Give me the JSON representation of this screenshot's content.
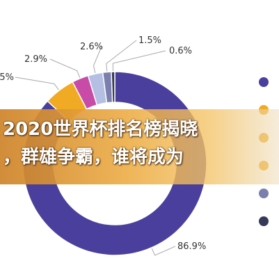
{
  "chart_data": {
    "type": "pie",
    "donut": true,
    "title": "",
    "series": [
      {
        "label": "86.9%",
        "value": 86.9,
        "color": "#4a3f9c"
      },
      {
        "label": "",
        "value": 5.5,
        "color": "#f0aa23"
      },
      {
        "label": "2.9%",
        "value": 2.9,
        "color": "#c84ba8"
      },
      {
        "label": "2.6%",
        "value": 2.6,
        "color": "#b4bfe3"
      },
      {
        "label": "1.5%",
        "value": 1.5,
        "color": "#7b7fad"
      },
      {
        "label": "0.6%",
        "value": 0.6,
        "color": "#363a58"
      }
    ],
    "partial_labels": [
      "5%"
    ],
    "legend": {
      "placement": "right",
      "colors": [
        "#4a3f9c",
        "#f0aa23",
        "#f0aa23",
        "#f0aa23",
        "#7b7fad",
        "#363a58"
      ]
    }
  },
  "banner": {
    "line1": "2020世界杯排名榜揭晓",
    "line2": "，群雄争霸，谁将成为"
  }
}
